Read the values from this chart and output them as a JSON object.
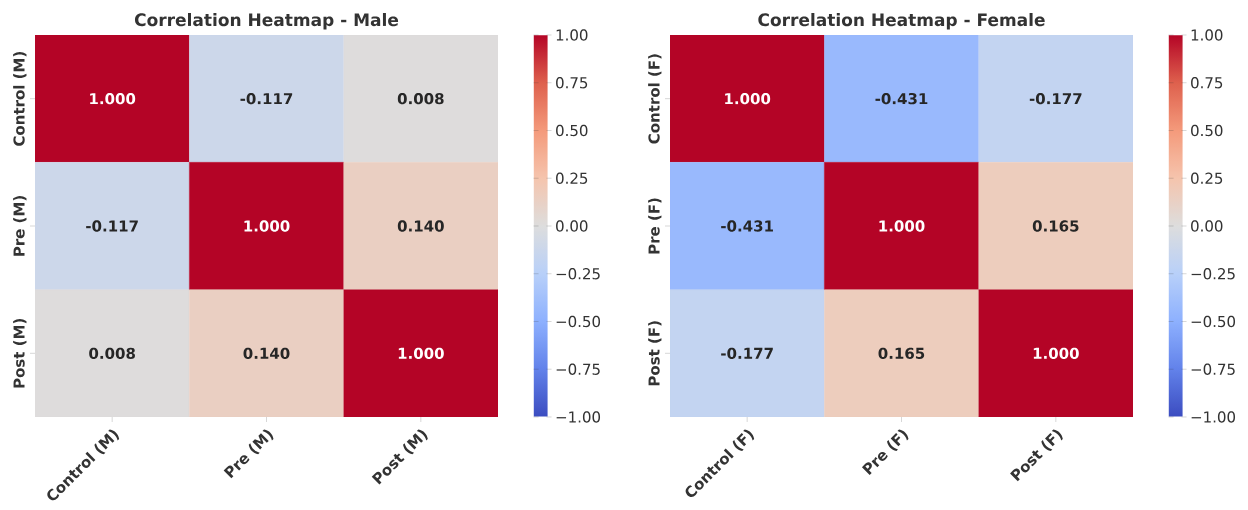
{
  "chart_data": [
    {
      "type": "heatmap",
      "title": "Correlation Heatmap - Male",
      "categories": [
        "Control (M)",
        "Pre (M)",
        "Post (M)"
      ],
      "y_categories": [
        "Control (M)",
        "Pre (M)",
        "Post (M)"
      ],
      "cells": [
        [
          1.0,
          -0.117,
          0.008
        ],
        [
          -0.117,
          1.0,
          0.14
        ],
        [
          0.008,
          0.14,
          1.0
        ]
      ],
      "cell_labels": [
        [
          "1.000",
          "-0.117",
          "0.008"
        ],
        [
          "-0.117",
          "1.000",
          "0.140"
        ],
        [
          "0.008",
          "0.140",
          "1.000"
        ]
      ],
      "clim": [
        -1,
        1
      ],
      "cticks": [
        {
          "value": -1,
          "label": "−1.00"
        },
        {
          "value": -0.75,
          "label": "−0.75"
        },
        {
          "value": -0.5,
          "label": "−0.50"
        },
        {
          "value": -0.25,
          "label": "−0.25"
        },
        {
          "value": 0,
          "label": "0.00"
        },
        {
          "value": 0.25,
          "label": "0.25"
        },
        {
          "value": 0.5,
          "label": "0.50"
        },
        {
          "value": 0.75,
          "label": "0.75"
        },
        {
          "value": 1,
          "label": "1.00"
        }
      ]
    },
    {
      "type": "heatmap",
      "title": "Correlation Heatmap - Female",
      "categories": [
        "Control (F)",
        "Pre (F)",
        "Post (F)"
      ],
      "y_categories": [
        "Control (F)",
        "Pre (F)",
        "Post (F)"
      ],
      "cells": [
        [
          1.0,
          -0.431,
          -0.177
        ],
        [
          -0.431,
          1.0,
          0.165
        ],
        [
          -0.177,
          0.165,
          1.0
        ]
      ],
      "cell_labels": [
        [
          "1.000",
          "-0.431",
          "-0.177"
        ],
        [
          "-0.431",
          "1.000",
          "0.165"
        ],
        [
          "-0.177",
          "0.165",
          "1.000"
        ]
      ],
      "clim": [
        -1,
        1
      ],
      "cticks": [
        {
          "value": -1,
          "label": "−1.00"
        },
        {
          "value": -0.75,
          "label": "−0.75"
        },
        {
          "value": -0.5,
          "label": "−0.50"
        },
        {
          "value": -0.25,
          "label": "−0.25"
        },
        {
          "value": 0,
          "label": "0.00"
        },
        {
          "value": 0.25,
          "label": "0.25"
        },
        {
          "value": 0.5,
          "label": "0.50"
        },
        {
          "value": 0.75,
          "label": "0.75"
        },
        {
          "value": 1,
          "label": "1.00"
        }
      ]
    }
  ]
}
